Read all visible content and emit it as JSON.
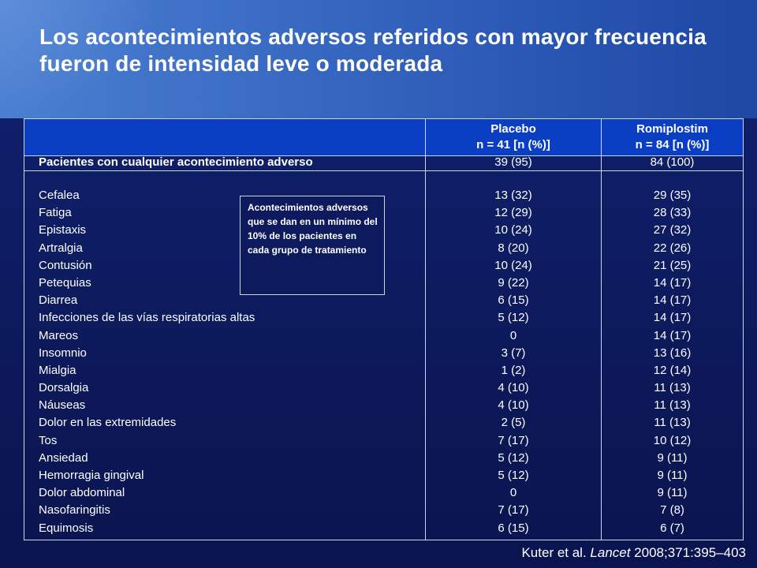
{
  "slide": {
    "title": "Los acontecimientos adversos referidos con mayor frecuencia fueron de intensidad leve o moderada"
  },
  "table": {
    "columns": {
      "placebo": {
        "line1": "Placebo",
        "line2": "n = 41 [n (%)]"
      },
      "romiplostim": {
        "line1": "Romiplostim",
        "line2": "n = 84 [n (%)]"
      }
    },
    "any_event": {
      "label": "Pacientes con cualquier acontecimiento adverso",
      "placebo": "39 (95)",
      "romiplostim": "84 (100)"
    },
    "rows": [
      {
        "event": "Cefalea",
        "placebo": "13 (32)",
        "romiplostim": "29 (35)"
      },
      {
        "event": "Fatiga",
        "placebo": "12 (29)",
        "romiplostim": "28 (33)"
      },
      {
        "event": "Epistaxis",
        "placebo": "10 (24)",
        "romiplostim": "27 (32)"
      },
      {
        "event": "Artralgia",
        "placebo": "8 (20)",
        "romiplostim": "22 (26)"
      },
      {
        "event": "Contusión",
        "placebo": "10 (24)",
        "romiplostim": "21 (25)"
      },
      {
        "event": "Petequias",
        "placebo": "9 (22)",
        "romiplostim": "14 (17)"
      },
      {
        "event": "Diarrea",
        "placebo": "6 (15)",
        "romiplostim": "14 (17)"
      },
      {
        "event": "Infecciones de las vías respiratorias altas",
        "placebo": "5 (12)",
        "romiplostim": "14 (17)"
      },
      {
        "event": "Mareos",
        "placebo": "0",
        "romiplostim": "14 (17)"
      },
      {
        "event": "Insomnio",
        "placebo": "3 (7)",
        "romiplostim": "13 (16)"
      },
      {
        "event": "Mialgia",
        "placebo": "1 (2)",
        "romiplostim": "12 (14)"
      },
      {
        "event": "Dorsalgia",
        "placebo": "4 (10)",
        "romiplostim": "11 (13)"
      },
      {
        "event": "Náuseas",
        "placebo": "4 (10)",
        "romiplostim": "11 (13)"
      },
      {
        "event": "Dolor en las extremidades",
        "placebo": "2 (5)",
        "romiplostim": "11 (13)"
      },
      {
        "event": "Tos",
        "placebo": "7 (17)",
        "romiplostim": "10 (12)"
      },
      {
        "event": "Ansiedad",
        "placebo": "5 (12)",
        "romiplostim": "9 (11)"
      },
      {
        "event": "Hemorragia gingival",
        "placebo": "5 (12)",
        "romiplostim": "9 (11)"
      },
      {
        "event": "Dolor abdominal",
        "placebo": "0",
        "romiplostim": "9 (11)"
      },
      {
        "event": "Nasofaringitis",
        "placebo": "7 (17)",
        "romiplostim": "7 (8)"
      },
      {
        "event": "Equimosis",
        "placebo": "6 (15)",
        "romiplostim": "6 (7)"
      }
    ]
  },
  "note": {
    "text": "Acontecimientos adversos que se dan en un mínimo del 10% de los pacientes en cada grupo de tratamiento"
  },
  "citation": {
    "authors": "Kuter et al. ",
    "journal": "Lancet",
    "ref": " 2008;371:395–403"
  },
  "colors": {
    "header_band": "#3a6cc4",
    "slide_body": "#0d1a5e",
    "table_header": "#0a3fc3",
    "rule_lines": "#c9d6f5",
    "text": "#ffffff"
  }
}
